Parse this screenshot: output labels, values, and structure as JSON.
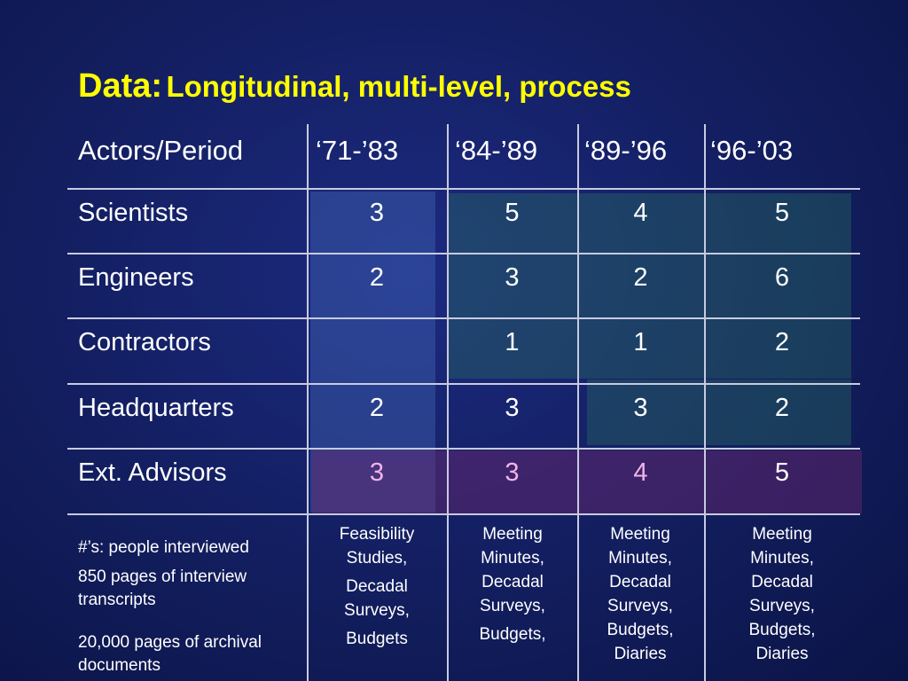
{
  "title": {
    "prefix": "Data:",
    "rest": "Longitudinal, multi-level, process"
  },
  "table": {
    "corner": "Actors/Period",
    "periods": [
      "‘71-’83",
      "‘84-’89",
      "‘89-’96",
      "‘96-’03"
    ],
    "rows": [
      {
        "label": "Scientists",
        "values": [
          "3",
          "5",
          "4",
          "5"
        ]
      },
      {
        "label": "Engineers",
        "values": [
          "2",
          "3",
          "2",
          "6"
        ]
      },
      {
        "label": "Contractors",
        "values": [
          "",
          "1",
          "1",
          "2"
        ]
      },
      {
        "label": "Headquarters",
        "values": [
          "2",
          "3",
          "3",
          "2"
        ]
      },
      {
        "label": "Ext. Advisors",
        "values": [
          "3",
          "3",
          "4",
          "5"
        ]
      }
    ]
  },
  "footer": {
    "notes": [
      "#’s:  people interviewed",
      "850 pages of interview transcripts",
      "20,000 pages of archival documents"
    ],
    "sources": [
      {
        "a": "Feasibility Studies,",
        "b": "Decadal Surveys,",
        "c": "Budgets"
      },
      {
        "a": "Meeting Minutes, Decadal Surveys,",
        "b": "Budgets,"
      },
      {
        "a": "Meeting Minutes, Decadal Surveys, Budgets, Diaries"
      },
      {
        "a": "Meeting Minutes, Decadal Surveys, Budgets, Diaries"
      }
    ]
  }
}
